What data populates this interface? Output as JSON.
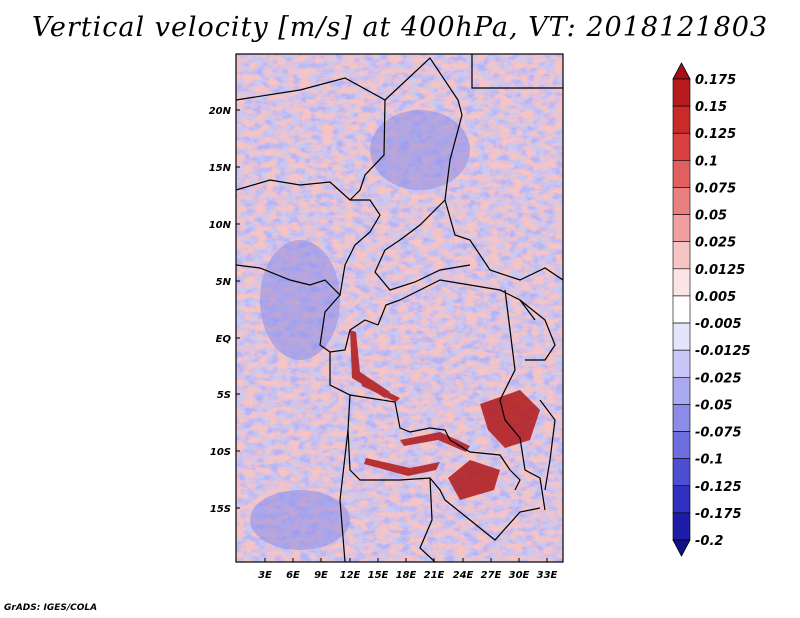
{
  "title": "Vertical velocity [m/s] at 400hPa, VT: 2018121803",
  "credit": "GrADS: IGES/COLA",
  "map": {
    "lat_labels": [
      "20N",
      "15N",
      "10N",
      "5N",
      "EQ",
      "5S",
      "10S",
      "15S"
    ],
    "lon_labels": [
      "3E",
      "6E",
      "9E",
      "12E",
      "15E",
      "18E",
      "21E",
      "24E",
      "27E",
      "30E",
      "33E"
    ]
  },
  "colorbar": {
    "labels": [
      "0.175",
      "0.15",
      "0.125",
      "0.1",
      "0.075",
      "0.05",
      "0.025",
      "0.0125",
      "0.005",
      "-0.005",
      "-0.0125",
      "-0.025",
      "-0.05",
      "-0.075",
      "-0.1",
      "-0.125",
      "-0.175",
      "-0.2"
    ],
    "colors": [
      "#a50f15",
      "#b71c1c",
      "#cb2a2a",
      "#d94040",
      "#e06060",
      "#e88080",
      "#f0a0a0",
      "#f6c4c4",
      "#fbe4e4",
      "#ffffff",
      "#e4e4fb",
      "#c8c8f6",
      "#aaaaf0",
      "#8c8ce8",
      "#6e6edf",
      "#4e4ed2",
      "#3030c0",
      "#1c1ca8",
      "#10108c"
    ]
  }
}
